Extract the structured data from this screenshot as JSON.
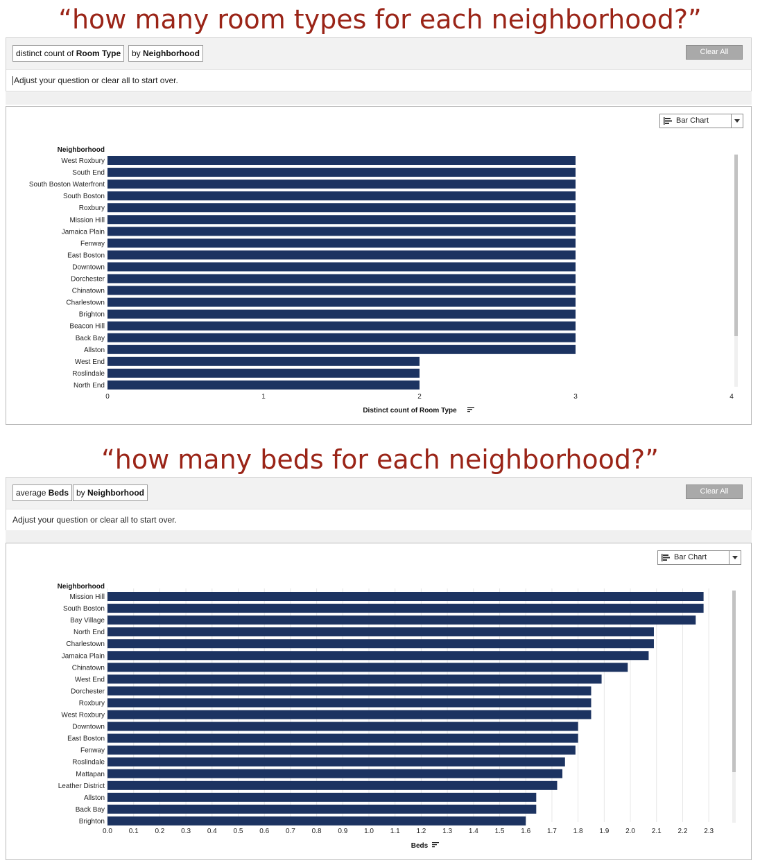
{
  "captions": {
    "first": "“how many room types for each neighborhood?”",
    "second": "“how many beds for each neighborhood?”"
  },
  "query1": {
    "pill_measure_prefix": "distinct count of ",
    "pill_measure_field": "Room Type",
    "pill_dimension_prefix": "by ",
    "pill_dimension_field": "Neighborhood",
    "clear_label": "Clear All",
    "hint": "Adjust your question or clear all to start over."
  },
  "query2": {
    "pill_measure_prefix": "average ",
    "pill_measure_field": "Beds",
    "pill_dimension_prefix": "by ",
    "pill_dimension_field": "Neighborhood",
    "clear_label": "Clear All",
    "hint": "Adjust your question or clear all to start over."
  },
  "vis_selector": {
    "label": "Bar Chart",
    "icon": "bar-chart-icon"
  },
  "colors": {
    "bar": "#1c3361",
    "caption": "#9a2417",
    "grid": "#e6e6e6"
  },
  "chart_data": [
    {
      "type": "bar",
      "orientation": "horizontal",
      "ylabel": "Neighborhood",
      "xlabel": "Distinct count of Room Type",
      "xlim": [
        0,
        4
      ],
      "xticks": [
        0,
        1,
        2,
        3,
        4
      ],
      "grid": false,
      "categories": [
        "West Roxbury",
        "South End",
        "South Boston Waterfront",
        "South Boston",
        "Roxbury",
        "Mission Hill",
        "Jamaica Plain",
        "Fenway",
        "East Boston",
        "Downtown",
        "Dorchester",
        "Chinatown",
        "Charlestown",
        "Brighton",
        "Beacon Hill",
        "Back Bay",
        "Allston",
        "West End",
        "Roslindale",
        "North End"
      ],
      "values": [
        3,
        3,
        3,
        3,
        3,
        3,
        3,
        3,
        3,
        3,
        3,
        3,
        3,
        3,
        3,
        3,
        3,
        2,
        2,
        2
      ]
    },
    {
      "type": "bar",
      "orientation": "horizontal",
      "ylabel": "Neighborhood",
      "xlabel": "Beds",
      "xlim": [
        0,
        2.35
      ],
      "xticks": [
        0,
        0.1,
        0.2,
        0.3,
        0.4,
        0.5,
        0.6,
        0.7,
        0.8,
        0.9,
        1,
        1.1,
        1.2,
        1.3,
        1.4,
        1.5,
        1.6,
        1.7,
        1.8,
        1.9,
        2,
        2.1,
        2.2,
        2.3
      ],
      "grid": true,
      "categories": [
        "Mission Hill",
        "South Boston",
        "Bay Village",
        "North End",
        "Charlestown",
        "Jamaica Plain",
        "Chinatown",
        "West End",
        "Dorchester",
        "Roxbury",
        "West Roxbury",
        "Downtown",
        "East Boston",
        "Fenway",
        "Roslindale",
        "Mattapan",
        "Leather District",
        "Allston",
        "Back Bay",
        "Brighton"
      ],
      "values": [
        2.28,
        2.28,
        2.25,
        2.09,
        2.09,
        2.07,
        1.99,
        1.89,
        1.85,
        1.85,
        1.85,
        1.8,
        1.8,
        1.79,
        1.75,
        1.74,
        1.72,
        1.64,
        1.64,
        1.6
      ]
    }
  ]
}
